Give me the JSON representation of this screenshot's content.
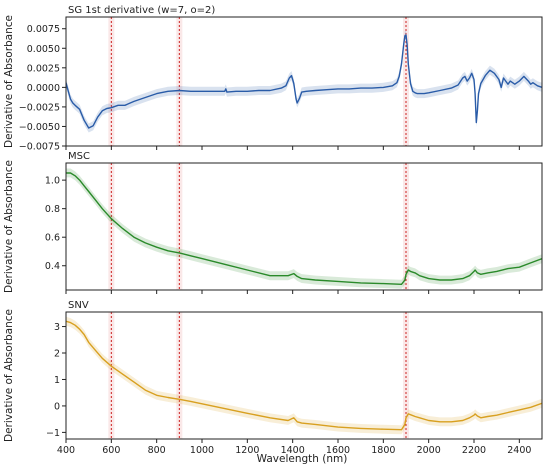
{
  "figure": {
    "xlabel": "Wavelength (nm)",
    "colors": {
      "sg": "#2a5ca8",
      "msc": "#2a8a2a",
      "snv": "#d8a020",
      "vline": "#cc2222"
    }
  },
  "chart_data": [
    {
      "type": "line",
      "title": "SG 1st derivative (w=7, o=2)",
      "xlabel": "",
      "ylabel": "Derivative of Absorbance",
      "xlim": [
        400,
        2500
      ],
      "ylim": [
        -0.0075,
        0.009
      ],
      "yticks": [
        -0.0075,
        -0.005,
        -0.0025,
        0.0,
        0.0025,
        0.005,
        0.0075
      ],
      "ytick_labels": [
        "−0.0075",
        "−0.0050",
        "−0.0025",
        "0.0000",
        "0.0025",
        "0.0050",
        "0.0075"
      ],
      "grid": false,
      "vlines": [
        600,
        900,
        1900
      ],
      "series": [
        {
          "color": "#2a5ca8",
          "band": true,
          "x": [
            400,
            410,
            420,
            430,
            440,
            460,
            480,
            500,
            520,
            540,
            560,
            580,
            600,
            630,
            660,
            700,
            750,
            800,
            850,
            900,
            950,
            1000,
            1050,
            1100,
            1105,
            1110,
            1150,
            1200,
            1250,
            1300,
            1350,
            1370,
            1385,
            1395,
            1405,
            1415,
            1420,
            1430,
            1440,
            1460,
            1500,
            1550,
            1600,
            1650,
            1700,
            1750,
            1800,
            1840,
            1860,
            1870,
            1880,
            1890,
            1895,
            1900,
            1905,
            1910,
            1920,
            1930,
            1940,
            1950,
            1980,
            2000,
            2050,
            2100,
            2130,
            2150,
            2160,
            2170,
            2180,
            2190,
            2200,
            2205,
            2210,
            2215,
            2220,
            2230,
            2250,
            2270,
            2290,
            2310,
            2320,
            2330,
            2340,
            2350,
            2360,
            2380,
            2400,
            2420,
            2440,
            2450,
            2460,
            2480,
            2500
          ],
          "y": [
            0.0006,
            -0.0005,
            -0.0015,
            -0.002,
            -0.0023,
            -0.0028,
            -0.0042,
            -0.0052,
            -0.0049,
            -0.0038,
            -0.003,
            -0.0027,
            -0.0026,
            -0.0023,
            -0.0023,
            -0.0018,
            -0.0013,
            -0.0008,
            -0.0005,
            -0.0004,
            -0.0005,
            -0.0005,
            -0.0005,
            -0.0005,
            -0.0002,
            -0.0006,
            -0.0005,
            -0.0005,
            -0.0004,
            -0.0004,
            -0.0001,
            0.0002,
            0.0012,
            0.0015,
            0.0005,
            -0.0015,
            -0.002,
            -0.0014,
            -0.0006,
            -0.0005,
            -0.0004,
            -0.0003,
            -0.0002,
            -0.0002,
            -0.0001,
            -0.0001,
            0.0,
            0.0002,
            0.0006,
            0.0014,
            0.003,
            0.0055,
            0.0066,
            0.0067,
            0.0055,
            0.003,
            0.0005,
            -0.0005,
            -0.0007,
            -0.0008,
            -0.0008,
            -0.0007,
            -0.0004,
            -0.0001,
            0.0003,
            0.0012,
            0.0014,
            0.0008,
            0.0012,
            0.0018,
            0.001,
            -0.0008,
            -0.0045,
            -0.003,
            -0.0008,
            0.0005,
            0.0015,
            0.0022,
            0.0018,
            0.001,
            0.0,
            0.0012,
            0.0008,
            0.0004,
            0.0008,
            0.0004,
            0.0008,
            0.0014,
            0.0008,
            0.0004,
            0.0006,
            0.0002,
            0.0
          ]
        }
      ]
    },
    {
      "type": "line",
      "title": "MSC",
      "xlabel": "",
      "ylabel": "Derivative of Absorbance",
      "xlim": [
        400,
        2500
      ],
      "ylim": [
        0.23,
        1.12
      ],
      "yticks": [
        0.4,
        0.6,
        0.8,
        1.0
      ],
      "ytick_labels": [
        "0.4",
        "0.6",
        "0.8",
        "1.0"
      ],
      "grid": false,
      "vlines": [
        600,
        900,
        1900
      ],
      "series": [
        {
          "color": "#2a8a2a",
          "band": true,
          "x": [
            400,
            420,
            440,
            460,
            480,
            500,
            530,
            560,
            600,
            650,
            700,
            750,
            800,
            850,
            900,
            950,
            1000,
            1100,
            1200,
            1300,
            1380,
            1405,
            1420,
            1440,
            1500,
            1600,
            1700,
            1800,
            1880,
            1895,
            1900,
            1910,
            1920,
            1940,
            1960,
            2000,
            2050,
            2100,
            2150,
            2180,
            2200,
            2205,
            2215,
            2230,
            2260,
            2300,
            2350,
            2400,
            2450,
            2500
          ],
          "y": [
            1.05,
            1.05,
            1.03,
            1.0,
            0.96,
            0.92,
            0.86,
            0.8,
            0.73,
            0.66,
            0.6,
            0.56,
            0.53,
            0.505,
            0.49,
            0.47,
            0.45,
            0.41,
            0.37,
            0.33,
            0.33,
            0.345,
            0.325,
            0.31,
            0.3,
            0.29,
            0.28,
            0.275,
            0.27,
            0.3,
            0.34,
            0.37,
            0.36,
            0.35,
            0.33,
            0.31,
            0.3,
            0.3,
            0.31,
            0.33,
            0.36,
            0.37,
            0.35,
            0.34,
            0.35,
            0.36,
            0.38,
            0.39,
            0.42,
            0.45
          ]
        }
      ]
    },
    {
      "type": "line",
      "title": "SNV",
      "xlabel": "Wavelength (nm)",
      "ylabel": "Derivative of Absorbance",
      "xlim": [
        400,
        2500
      ],
      "ylim": [
        -1.25,
        3.55
      ],
      "yticks": [
        -1,
        0,
        1,
        2,
        3
      ],
      "ytick_labels": [
        "−1",
        "0",
        "1",
        "2",
        "3"
      ],
      "xticks": [
        400,
        600,
        800,
        1000,
        1200,
        1400,
        1600,
        1800,
        2000,
        2200,
        2400
      ],
      "grid": false,
      "vlines": [
        600,
        900,
        1900
      ],
      "series": [
        {
          "color": "#d8a020",
          "band": true,
          "x": [
            400,
            420,
            440,
            460,
            480,
            500,
            530,
            560,
            600,
            650,
            700,
            750,
            800,
            850,
            900,
            950,
            1000,
            1100,
            1200,
            1300,
            1380,
            1405,
            1420,
            1440,
            1500,
            1600,
            1700,
            1800,
            1880,
            1895,
            1900,
            1910,
            1920,
            1940,
            1960,
            2000,
            2050,
            2100,
            2150,
            2180,
            2200,
            2205,
            2215,
            2230,
            2260,
            2300,
            2350,
            2400,
            2450,
            2500
          ],
          "y": [
            3.2,
            3.15,
            3.05,
            2.9,
            2.7,
            2.4,
            2.1,
            1.8,
            1.5,
            1.2,
            0.9,
            0.6,
            0.4,
            0.32,
            0.25,
            0.17,
            0.08,
            -0.1,
            -0.28,
            -0.45,
            -0.55,
            -0.45,
            -0.6,
            -0.65,
            -0.7,
            -0.8,
            -0.85,
            -0.88,
            -0.9,
            -0.7,
            -0.45,
            -0.3,
            -0.33,
            -0.4,
            -0.45,
            -0.55,
            -0.6,
            -0.6,
            -0.55,
            -0.45,
            -0.35,
            -0.3,
            -0.38,
            -0.45,
            -0.4,
            -0.35,
            -0.25,
            -0.15,
            -0.05,
            0.1
          ]
        }
      ]
    }
  ]
}
